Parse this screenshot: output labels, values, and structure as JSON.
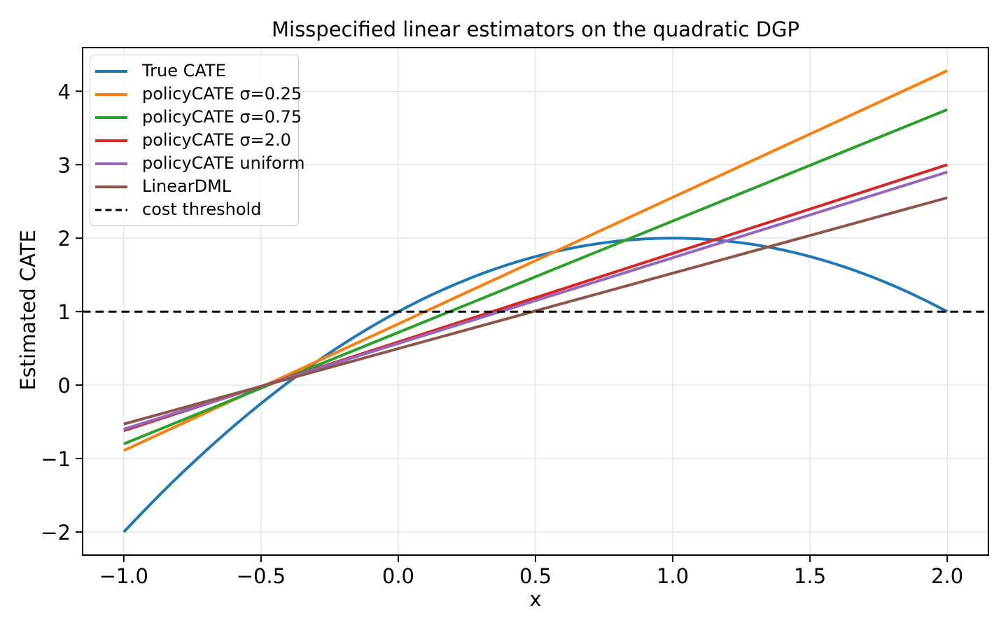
{
  "chart_data": {
    "type": "line",
    "title": "Misspecified linear estimators on the quadratic DGP",
    "xlabel": "x",
    "ylabel": "Estimated CATE",
    "xlim": [
      -1.15,
      2.15
    ],
    "ylim": [
      -2.314,
      4.594
    ],
    "xticks": [
      -1.0,
      -0.5,
      0.0,
      0.5,
      1.0,
      1.5,
      2.0
    ],
    "xtick_labels": [
      "−1.0",
      "−0.5",
      "0.0",
      "0.5",
      "1.0",
      "1.5",
      "2.0"
    ],
    "yticks": [
      -2,
      -1,
      0,
      1,
      2,
      3,
      4
    ],
    "ytick_labels": [
      "−2",
      "−1",
      "0",
      "1",
      "2",
      "3",
      "4"
    ],
    "grid": true,
    "legend_position": "upper left",
    "series": [
      {
        "name": "True CATE",
        "color": "#1f77b4",
        "style": "solid",
        "kind": "quadratic",
        "formula_coefficients": {
          "intercept": 1,
          "linear": 2,
          "quadratic": -1
        },
        "x": [
          -1,
          -0.75,
          -0.5,
          -0.25,
          0,
          0.25,
          0.5,
          0.75,
          1,
          1.25,
          1.5,
          1.75,
          2
        ],
        "y": [
          -2,
          -1.06,
          -0.25,
          0.44,
          1,
          1.44,
          1.75,
          1.94,
          2,
          1.94,
          1.75,
          1.44,
          1
        ]
      },
      {
        "name": "policyCATE σ=0.25",
        "color": "#ff7f0e",
        "style": "solid",
        "kind": "linear",
        "x": [
          -1,
          2
        ],
        "y": [
          -0.89,
          4.28
        ]
      },
      {
        "name": "policyCATE σ=0.75",
        "color": "#2ca02c",
        "style": "solid",
        "kind": "linear",
        "x": [
          -1,
          2
        ],
        "y": [
          -0.8,
          3.75
        ]
      },
      {
        "name": "policyCATE σ=2.0",
        "color": "#d62728",
        "style": "solid",
        "kind": "linear",
        "x": [
          -1,
          2
        ],
        "y": [
          -0.62,
          3.0
        ]
      },
      {
        "name": "policyCATE uniform",
        "color": "#9467bd",
        "style": "solid",
        "kind": "linear",
        "x": [
          -1,
          2
        ],
        "y": [
          -0.6,
          2.9
        ]
      },
      {
        "name": "LinearDML",
        "color": "#8c564b",
        "style": "solid",
        "kind": "linear",
        "x": [
          -1,
          2
        ],
        "y": [
          -0.53,
          2.55
        ]
      },
      {
        "name": "cost threshold",
        "color": "#000000",
        "style": "dashed",
        "kind": "hline",
        "y_value": 1
      }
    ]
  }
}
